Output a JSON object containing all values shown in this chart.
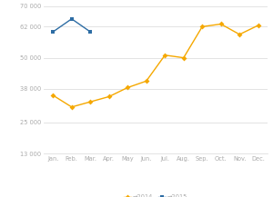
{
  "months_2014": [
    "Jan.",
    "Feb.",
    "Mar.",
    "Apr.",
    "May",
    "Jun.",
    "Jul.",
    "Aug.",
    "Sep.",
    "Oct.",
    "Nov.",
    "Dec."
  ],
  "values_2014": [
    35500,
    31000,
    33000,
    35000,
    38500,
    41000,
    51000,
    50000,
    62000,
    63000,
    59000,
    62500
  ],
  "months_2015": [
    "Jan.",
    "Feb.",
    "Mar."
  ],
  "values_2015": [
    60000,
    65000,
    60000
  ],
  "color_2014": "#f5a800",
  "color_2015": "#2e6da4",
  "ylim": [
    13000,
    70000
  ],
  "yticks": [
    13000,
    25000,
    38000,
    50000,
    62000,
    70000
  ],
  "ytick_labels": [
    "13 000",
    "25 000",
    "38 000",
    "50 000",
    "62 000",
    "70 000"
  ],
  "legend_2014": "→2014",
  "legend_2015": "→2015",
  "bg_color": "#ffffff",
  "grid_color": "#d8d8d8",
  "tick_color": "#aaaaaa",
  "label_fontsize": 4.8,
  "line_width": 1.0,
  "marker_size": 3.0
}
